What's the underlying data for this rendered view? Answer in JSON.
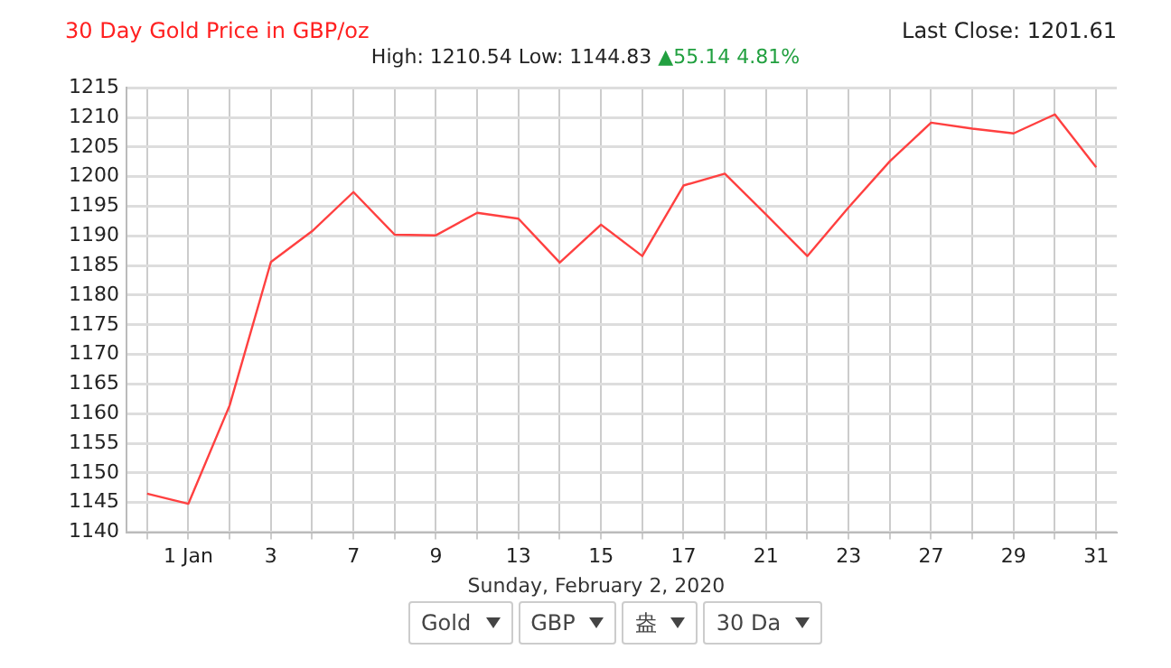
{
  "chart_data": {
    "type": "line",
    "title": "30 Day Gold Price in GBP/oz",
    "subtitle": "High: 1210.54 Low: 1144.83",
    "annotations": [
      "Last Close: 1201.61",
      "▲55.14 4.81%",
      "Sunday, February 2, 2020",
      "Gold",
      "GBP",
      "盎",
      "30 Da"
    ],
    "categories": [
      null,
      "1 Jan",
      null,
      "3",
      null,
      "7",
      null,
      "9",
      null,
      "13",
      null,
      "15",
      null,
      "17",
      null,
      "21",
      null,
      "23",
      null,
      "27",
      null,
      "29",
      null,
      "31"
    ],
    "series": [
      {
        "color": "#ff4040",
        "values": [
          1146.5,
          1144.8,
          1161.4,
          1185.6,
          1190.8,
          1197.4,
          1190.2,
          1190.1,
          1193.9,
          1192.9,
          1185.5,
          1191.9,
          1186.6,
          1198.5,
          1200.5,
          1193.6,
          1186.6,
          1194.8,
          1202.6,
          1209.1,
          1208.1,
          1207.3,
          1210.5,
          1201.6
        ]
      }
    ],
    "ylim": [
      1140,
      1215
    ],
    "yticks": [
      1140,
      1145,
      1150,
      1155,
      1160,
      1165,
      1170,
      1175,
      1180,
      1185,
      1190,
      1195,
      1200,
      1205,
      1210,
      1215
    ],
    "grid": true,
    "legend": false,
    "marker": "none",
    "line_style": "solid"
  }
}
